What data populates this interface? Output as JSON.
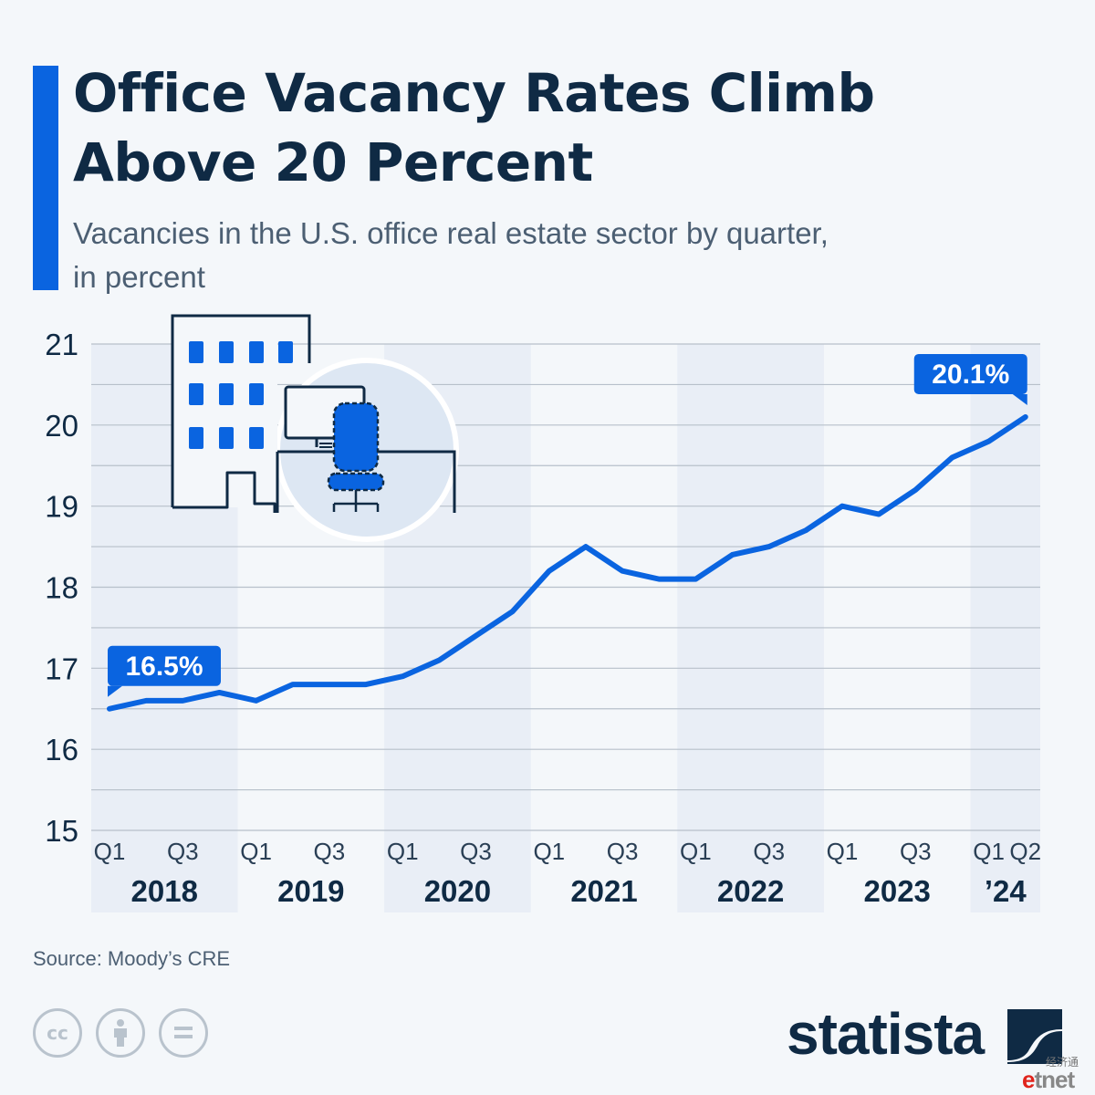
{
  "header": {
    "title_line1": "Office Vacancy Rates Climb",
    "title_line2": "Above 20 Percent",
    "subtitle_line1": "Vacancies in the U.S. office real estate sector by quarter,",
    "subtitle_line2": "in percent"
  },
  "footer": {
    "source": "Source: Moody’s CRE",
    "brand": "statista",
    "cc_icons": [
      "cc-icon",
      "attribution-icon",
      "no-derivatives-icon"
    ],
    "watermark_cn": "经济通",
    "watermark_e": "e",
    "watermark_rest": "tnet"
  },
  "colors": {
    "accent": "#0a64e0",
    "text": "#0f2a44",
    "band": "#e9eef6"
  },
  "chart_data": {
    "type": "line",
    "title": "Office Vacancy Rates Climb Above 20 Percent",
    "subtitle": "Vacancies in the U.S. office real estate sector by quarter, in percent",
    "x": [
      "2018 Q1",
      "2018 Q2",
      "2018 Q3",
      "2018 Q4",
      "2019 Q1",
      "2019 Q2",
      "2019 Q3",
      "2019 Q4",
      "2020 Q1",
      "2020 Q2",
      "2020 Q3",
      "2020 Q4",
      "2021 Q1",
      "2021 Q2",
      "2021 Q3",
      "2021 Q4",
      "2022 Q1",
      "2022 Q2",
      "2022 Q3",
      "2022 Q4",
      "2023 Q1",
      "2023 Q2",
      "2023 Q3",
      "2023 Q4",
      "2024 Q1",
      "2024 Q2"
    ],
    "values": [
      16.5,
      16.6,
      16.6,
      16.7,
      16.6,
      16.8,
      16.8,
      16.8,
      16.9,
      17.1,
      17.4,
      17.7,
      18.2,
      18.5,
      18.2,
      18.1,
      18.1,
      18.4,
      18.5,
      18.7,
      19.0,
      18.9,
      19.2,
      19.6,
      19.8,
      20.1
    ],
    "ylim": [
      15,
      21
    ],
    "yticks": [
      "15",
      "16",
      "17",
      "18",
      "19",
      "20",
      "21"
    ],
    "quarter_labels": [
      "Q1",
      "",
      "Q3",
      "",
      "Q1",
      "",
      "Q3",
      "",
      "Q1",
      "",
      "Q3",
      "",
      "Q1",
      "",
      "Q3",
      "",
      "Q1",
      "",
      "Q3",
      "",
      "Q1",
      "",
      "Q3",
      "",
      "Q1",
      "Q2"
    ],
    "year_groups": [
      {
        "label": "2018",
        "quarters": 4,
        "shaded": true
      },
      {
        "label": "2019",
        "quarters": 4,
        "shaded": false
      },
      {
        "label": "2020",
        "quarters": 4,
        "shaded": true
      },
      {
        "label": "2021",
        "quarters": 4,
        "shaded": false
      },
      {
        "label": "2022",
        "quarters": 4,
        "shaded": true
      },
      {
        "label": "2023",
        "quarters": 4,
        "shaded": false
      },
      {
        "label": "’24",
        "quarters": 2,
        "shaded": true
      }
    ],
    "annotations": [
      {
        "index": 0,
        "text": "16.5%"
      },
      {
        "index": 25,
        "text": "20.1%"
      }
    ],
    "grid": true,
    "line_color": "#0a64e0"
  }
}
